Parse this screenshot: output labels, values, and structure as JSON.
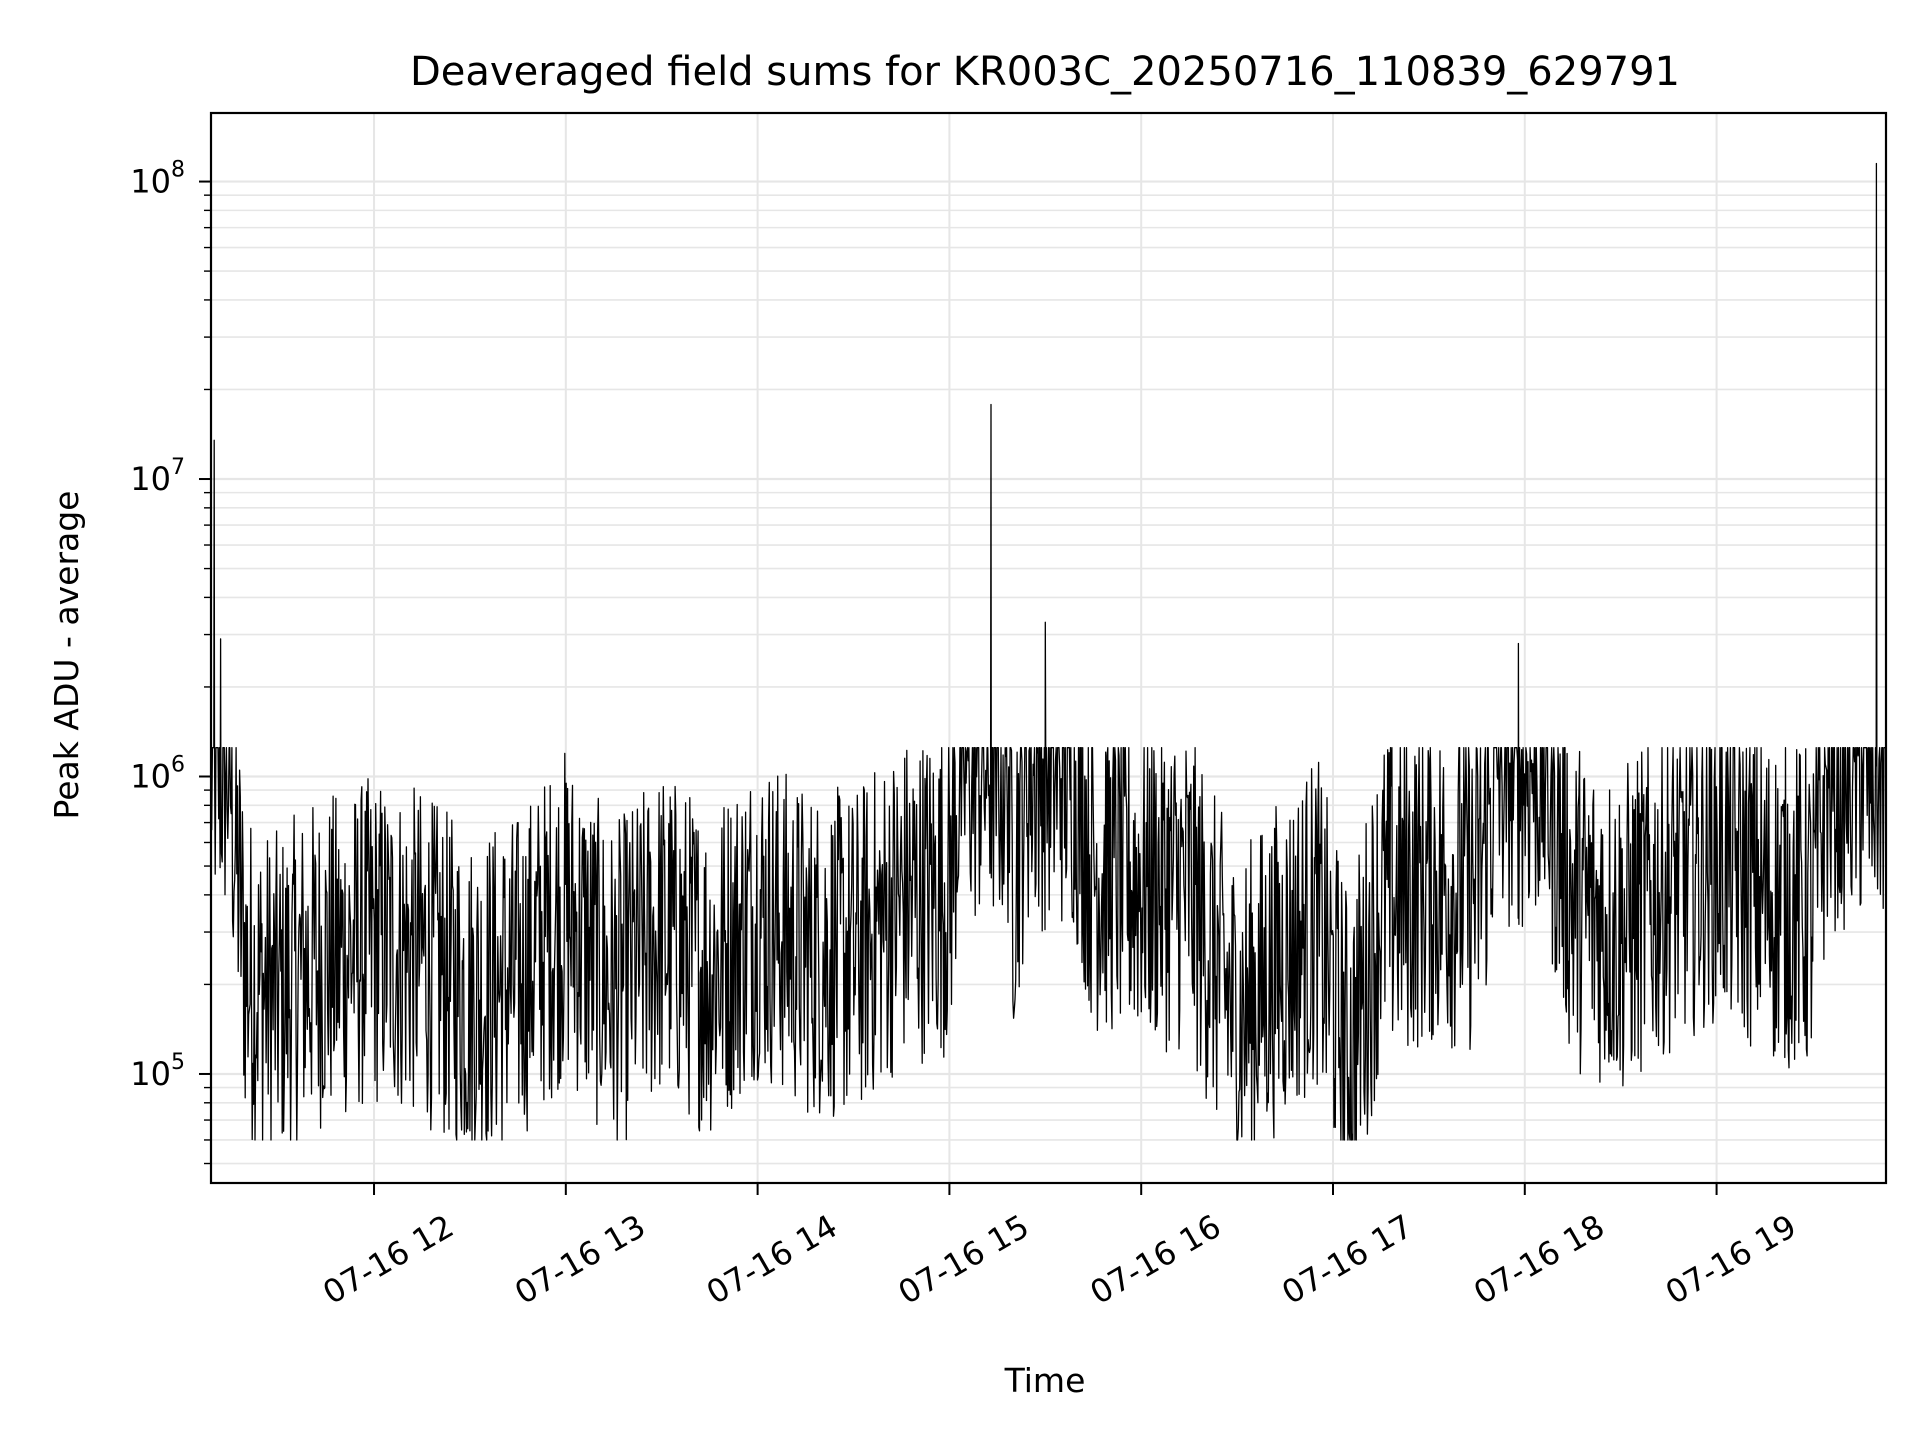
{
  "chart_data": {
    "type": "line",
    "title": "Deaveraged field sums for KR003C_20250716_110839_629791",
    "xlabel": "Time",
    "ylabel": "Peak ADU - average",
    "yscale": "log",
    "ylim": [
      43000,
      170000000
    ],
    "xlim": [
      "2025-07-16 11:09",
      "2025-07-16 19:53"
    ],
    "grid": true,
    "grid_color": "#e6e6e6",
    "line_color": "#000000",
    "x_ticks": [
      {
        "value": "2025-07-16 12:00",
        "label": "07-16 12"
      },
      {
        "value": "2025-07-16 13:00",
        "label": "07-16 13"
      },
      {
        "value": "2025-07-16 14:00",
        "label": "07-16 14"
      },
      {
        "value": "2025-07-16 15:00",
        "label": "07-16 15"
      },
      {
        "value": "2025-07-16 16:00",
        "label": "07-16 16"
      },
      {
        "value": "2025-07-16 17:00",
        "label": "07-16 17"
      },
      {
        "value": "2025-07-16 18:00",
        "label": "07-16 18"
      },
      {
        "value": "2025-07-16 19:00",
        "label": "07-16 19"
      }
    ],
    "y_ticks": [
      {
        "value": 100000,
        "base": "10",
        "exp": "5"
      },
      {
        "value": 1000000,
        "base": "10",
        "exp": "6"
      },
      {
        "value": 10000000,
        "base": "10",
        "exp": "7"
      },
      {
        "value": 100000000,
        "base": "10",
        "exp": "8"
      }
    ],
    "series": [
      {
        "x": [
          "2025-07-16 11:09",
          "2025-07-16 11:10",
          "2025-07-16 11:11",
          "2025-07-16 11:12",
          "2025-07-16 11:14",
          "2025-07-16 11:16",
          "2025-07-16 11:20",
          "2025-07-16 11:25",
          "2025-07-16 11:30",
          "2025-07-16 11:40",
          "2025-07-16 11:50",
          "2025-07-16 12:00",
          "2025-07-16 12:15",
          "2025-07-16 12:30",
          "2025-07-16 12:45",
          "2025-07-16 13:00",
          "2025-07-16 13:15",
          "2025-07-16 13:30",
          "2025-07-16 13:45",
          "2025-07-16 14:00",
          "2025-07-16 14:15",
          "2025-07-16 14:30",
          "2025-07-16 14:45",
          "2025-07-16 15:00",
          "2025-07-16 15:13",
          "2025-07-16 15:20",
          "2025-07-16 15:30",
          "2025-07-16 15:45",
          "2025-07-16 16:00",
          "2025-07-16 16:15",
          "2025-07-16 16:30",
          "2025-07-16 16:45",
          "2025-07-16 16:55",
          "2025-07-16 17:05",
          "2025-07-16 17:15",
          "2025-07-16 17:30",
          "2025-07-16 17:45",
          "2025-07-16 17:58",
          "2025-07-16 18:15",
          "2025-07-16 18:30",
          "2025-07-16 18:45",
          "2025-07-16 19:00",
          "2025-07-16 19:15",
          "2025-07-16 19:30",
          "2025-07-16 19:35",
          "2025-07-16 19:45",
          "2025-07-16 19:50",
          "2025-07-16 19:53"
        ],
        "y": [
          1300000,
          13500000,
          1400000,
          2900000,
          1500000,
          700000,
          220000,
          190000,
          180000,
          230000,
          250000,
          280000,
          250000,
          180000,
          210000,
          350000,
          190000,
          300000,
          220000,
          350000,
          260000,
          250000,
          380000,
          420000,
          17800000,
          480000,
          3300000,
          500000,
          450000,
          420000,
          150000,
          250000,
          330000,
          110000,
          380000,
          450000,
          420000,
          2800000,
          380000,
          300000,
          430000,
          550000,
          400000,
          350000,
          1100000,
          1300000,
          115000000,
          1500000
        ],
        "noise": {
          "min": 60000,
          "max": 1250000
        }
      }
    ]
  }
}
